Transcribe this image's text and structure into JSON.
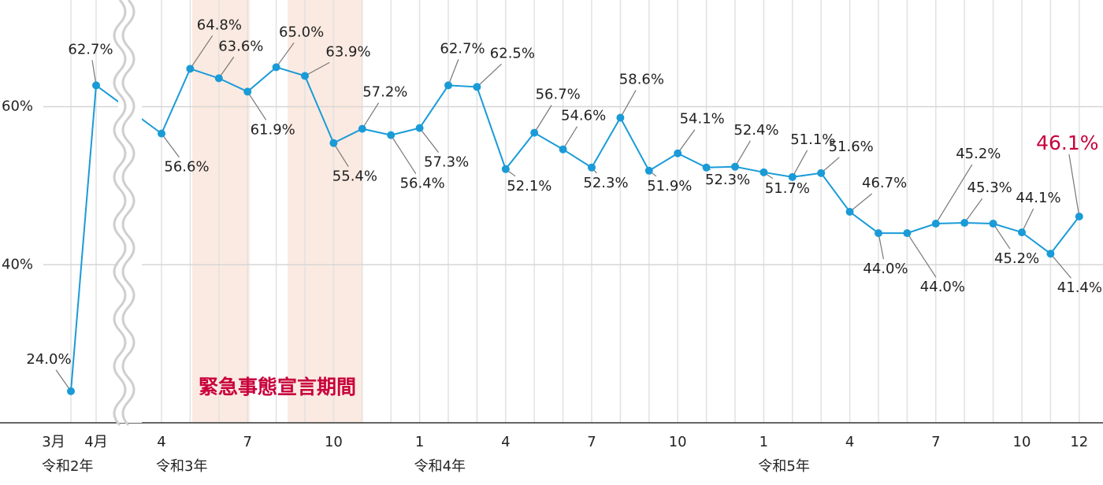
{
  "chart_data": {
    "type": "line",
    "annotation": "緊急事態宣言期間",
    "categories": [
      "3月",
      "4月",
      "4",
      null,
      null,
      "7",
      null,
      null,
      "10",
      null,
      null,
      "1",
      null,
      null,
      "4",
      null,
      null,
      "7",
      null,
      null,
      "10",
      null,
      null,
      "1",
      null,
      null,
      "4",
      null,
      null,
      "7",
      null,
      null,
      "10",
      null,
      "12"
    ],
    "year_labels": [
      "令和2年",
      null,
      "令和3年",
      null,
      null,
      null,
      null,
      null,
      null,
      null,
      null,
      "令和4年",
      null,
      null,
      null,
      null,
      null,
      null,
      null,
      null,
      null,
      null,
      null,
      "令和5年",
      null,
      null,
      null,
      null,
      null,
      null,
      null,
      null,
      null,
      null,
      null
    ],
    "series": [
      {
        "color": "#1a9bd7",
        "values": [
          24.0,
          62.7,
          56.6,
          64.8,
          63.6,
          61.9,
          65.0,
          63.9,
          55.4,
          57.2,
          56.4,
          57.3,
          62.7,
          62.5,
          52.1,
          56.7,
          54.6,
          52.3,
          58.6,
          51.9,
          54.1,
          52.3,
          52.4,
          51.7,
          51.1,
          51.6,
          46.7,
          44.0,
          44.0,
          45.2,
          45.3,
          45.2,
          44.1,
          41.4,
          46.1
        ],
        "value_labels": [
          "24.0%",
          "62.7%",
          "56.6%",
          "64.8%",
          "63.6%",
          "61.9%",
          "65.0%",
          "63.9%",
          "55.4%",
          "57.2%",
          "56.4%",
          "57.3%",
          "62.7%",
          "62.5%",
          "52.1%",
          "56.7%",
          "54.6%",
          "52.3%",
          "58.6%",
          "51.9%",
          "54.1%",
          "52.3%",
          "52.4%",
          "51.7%",
          "51.1%",
          "51.6%",
          "46.7%",
          "44.0%",
          "44.0%",
          "45.2%",
          "45.3%",
          "45.2%",
          "44.1%",
          "41.4%",
          "46.1%"
        ]
      }
    ],
    "ylim": [
      20,
      73.5
    ],
    "yticks": [
      {
        "value": 40,
        "label": "40%"
      },
      {
        "value": 60,
        "label": "60%"
      }
    ],
    "grid": true,
    "highlight_last": true,
    "highlight_color": "#c8003c",
    "shade_color": "#fbeae1"
  }
}
